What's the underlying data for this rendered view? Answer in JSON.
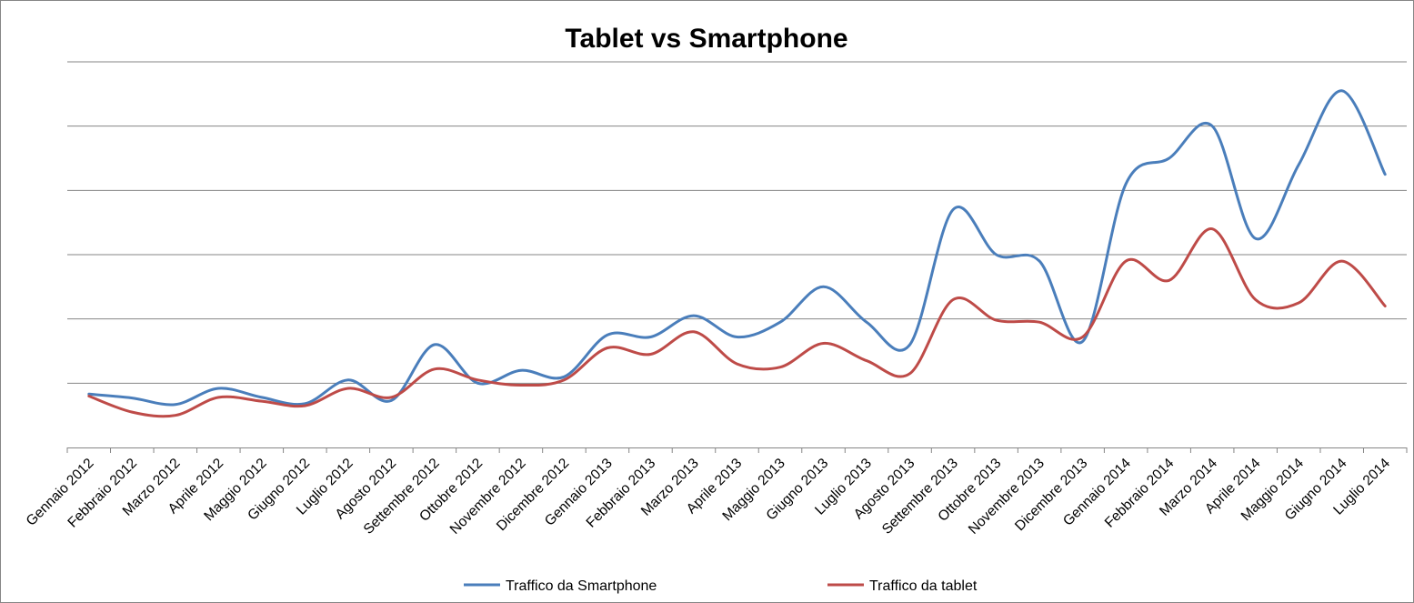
{
  "chart_data": {
    "type": "line",
    "title": "Tablet vs Smartphone",
    "xlabel": "",
    "ylabel": "",
    "y_tick_labels_shown": false,
    "ylim": [
      0,
      6
    ],
    "grid": "horizontal",
    "smooth": true,
    "legend_position": "bottom",
    "categories": [
      "Gennaio 2012",
      "Febbraio 2012",
      "Marzo 2012",
      "Aprile 2012",
      "Maggio 2012",
      "Giugno 2012",
      "Luglio 2012",
      "Agosto 2012",
      "Settembre 2012",
      "Ottobre 2012",
      "Novembre 2012",
      "Dicembre 2012",
      "Gennaio 2013",
      "Febbraio 2013",
      "Marzo 2013",
      "Aprile 2013",
      "Maggio 2013",
      "Giugno 2013",
      "Luglio 2013",
      "Agosto 2013",
      "Settembre 2013",
      "Ottobre 2013",
      "Novembre 2013",
      "Dicembre 2013",
      "Gennaio 2014",
      "Febbraio 2014",
      "Marzo 2014",
      "Aprile 2014",
      "Maggio 2014",
      "Giugno 2014",
      "Luglio 2014"
    ],
    "series": [
      {
        "name": "Traffico da Smartphone",
        "color": "#4A7EBB",
        "values": [
          0.83,
          0.77,
          0.67,
          0.92,
          0.78,
          0.68,
          1.05,
          0.73,
          1.6,
          1.0,
          1.2,
          1.1,
          1.75,
          1.72,
          2.05,
          1.72,
          1.95,
          2.5,
          1.95,
          1.6,
          3.7,
          3.0,
          2.9,
          1.65,
          4.1,
          4.5,
          5.0,
          3.25,
          4.4,
          5.55,
          4.25
        ]
      },
      {
        "name": "Traffico da tablet",
        "color": "#BE4B48",
        "values": [
          0.8,
          0.55,
          0.5,
          0.78,
          0.72,
          0.65,
          0.92,
          0.78,
          1.22,
          1.05,
          0.97,
          1.05,
          1.55,
          1.45,
          1.8,
          1.3,
          1.25,
          1.62,
          1.35,
          1.15,
          2.3,
          1.98,
          1.95,
          1.72,
          2.9,
          2.6,
          3.4,
          2.3,
          2.25,
          2.9,
          2.2
        ]
      }
    ]
  }
}
